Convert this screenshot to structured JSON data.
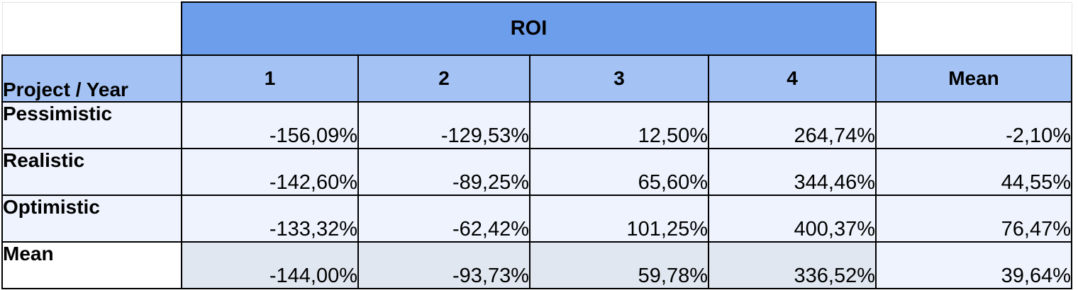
{
  "spreadsheet": {
    "title": "ROI",
    "corner_label": "Project / Year",
    "columns": [
      "1",
      "2",
      "3",
      "4",
      "Mean"
    ],
    "rows": [
      {
        "label": "Pessimistic",
        "values": [
          "-156,09%",
          "-129,53%",
          "12,50%",
          "264,74%",
          "-2,10%"
        ]
      },
      {
        "label": "Realistic",
        "values": [
          "-142,60%",
          "-89,25%",
          "65,60%",
          "344,46%",
          "44,55%"
        ]
      },
      {
        "label": "Optimistic",
        "values": [
          "-133,32%",
          "-62,42%",
          "101,25%",
          "400,37%",
          "76,47%"
        ]
      },
      {
        "label": "Mean",
        "values": [
          "-144,00%",
          "-93,73%",
          "59,78%",
          "336,52%",
          "39,64%"
        ]
      }
    ],
    "colors": {
      "title_fill": "#6d9eeb",
      "header_fill": "#a4c2f4",
      "body_fill": "#eef3fd",
      "mean_row_fill": "#e1e7f0"
    }
  }
}
